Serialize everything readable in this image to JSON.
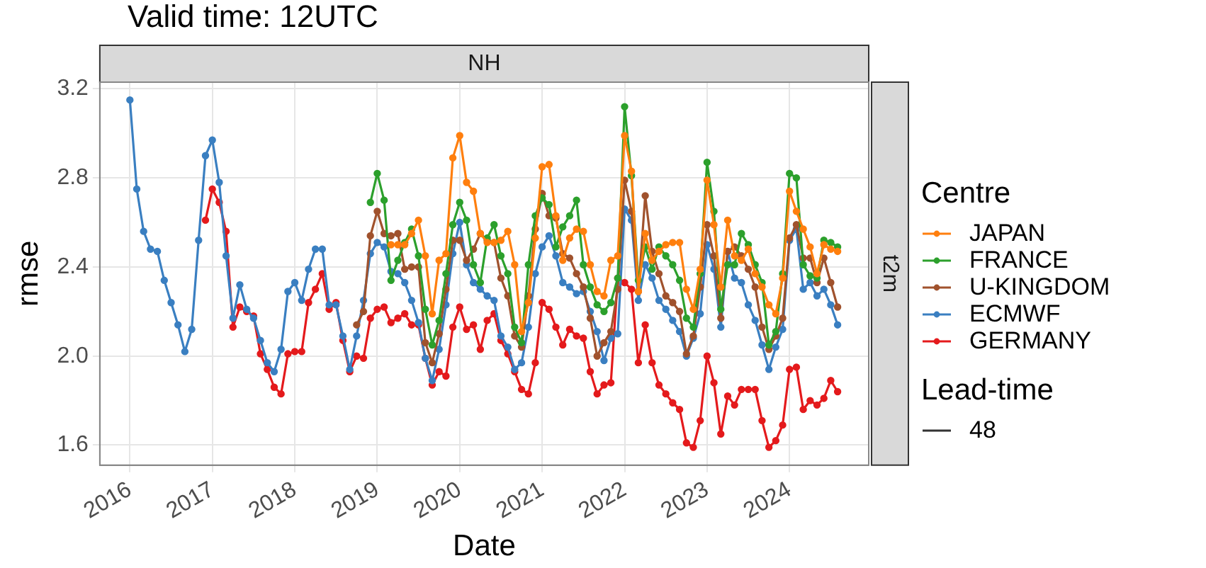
{
  "chart_data": {
    "type": "line",
    "title": "Valid time: 12UTC",
    "xlabel": "Date",
    "ylabel": "rmse",
    "legend_title": "Centre",
    "legend": "right",
    "grid": true,
    "marker": "circle",
    "line_style": "solid",
    "annotations": [
      "NH",
      "t2m",
      "Lead-time",
      "48"
    ],
    "xlim": [
      "2015-08-20",
      "2024-12-17"
    ],
    "xticks": [
      {
        "value": "2016-01-01",
        "label": "2016"
      },
      {
        "value": "2017-01-01",
        "label": "2017"
      },
      {
        "value": "2018-01-01",
        "label": "2018"
      },
      {
        "value": "2019-01-01",
        "label": "2019"
      },
      {
        "value": "2020-01-01",
        "label": "2020"
      },
      {
        "value": "2021-01-01",
        "label": "2021"
      },
      {
        "value": "2022-01-01",
        "label": "2022"
      },
      {
        "value": "2023-01-01",
        "label": "2023"
      },
      {
        "value": "2024-01-01",
        "label": "2024"
      }
    ],
    "ylim": [
      1.51,
      3.23
    ],
    "yticks": [
      {
        "value": 1.6,
        "label": "1.6"
      },
      {
        "value": 2,
        "label": "2.0"
      },
      {
        "value": 2.4,
        "label": "2.4"
      },
      {
        "value": 2.8,
        "label": "2.8"
      },
      {
        "value": 3.2,
        "label": "3.2"
      }
    ],
    "x": [
      "2016-01",
      "2016-02",
      "2016-03",
      "2016-04",
      "2016-05",
      "2016-06",
      "2016-07",
      "2016-08",
      "2016-09",
      "2016-10",
      "2016-11",
      "2016-12",
      "2017-01",
      "2017-02",
      "2017-03",
      "2017-04",
      "2017-05",
      "2017-06",
      "2017-07",
      "2017-08",
      "2017-09",
      "2017-10",
      "2017-11",
      "2017-12",
      "2018-01",
      "2018-02",
      "2018-03",
      "2018-04",
      "2018-05",
      "2018-06",
      "2018-07",
      "2018-08",
      "2018-09",
      "2018-10",
      "2018-11",
      "2018-12",
      "2019-01",
      "2019-02",
      "2019-03",
      "2019-04",
      "2019-05",
      "2019-06",
      "2019-07",
      "2019-08",
      "2019-09",
      "2019-10",
      "2019-11",
      "2019-12",
      "2020-01",
      "2020-02",
      "2020-03",
      "2020-04",
      "2020-05",
      "2020-06",
      "2020-07",
      "2020-08",
      "2020-09",
      "2020-10",
      "2020-11",
      "2020-12",
      "2021-01",
      "2021-02",
      "2021-03",
      "2021-04",
      "2021-05",
      "2021-06",
      "2021-07",
      "2021-08",
      "2021-09",
      "2021-10",
      "2021-11",
      "2021-12",
      "2022-01",
      "2022-02",
      "2022-03",
      "2022-04",
      "2022-05",
      "2022-06",
      "2022-07",
      "2022-08",
      "2022-09",
      "2022-10",
      "2022-11",
      "2022-12",
      "2023-01",
      "2023-02",
      "2023-03",
      "2023-04",
      "2023-05",
      "2023-06",
      "2023-07",
      "2023-08",
      "2023-09",
      "2023-10",
      "2023-11",
      "2023-12",
      "2024-01",
      "2024-02",
      "2024-03",
      "2024-04",
      "2024-05",
      "2024-06",
      "2024-07",
      "2024-08"
    ],
    "series": [
      {
        "name": "JAPAN",
        "color": "#ff7f0e",
        "values": [
          null,
          null,
          null,
          null,
          null,
          null,
          null,
          null,
          null,
          null,
          null,
          null,
          null,
          null,
          null,
          null,
          null,
          null,
          null,
          null,
          null,
          null,
          null,
          null,
          null,
          null,
          null,
          null,
          null,
          null,
          null,
          null,
          null,
          null,
          null,
          null,
          null,
          null,
          2.5,
          2.5,
          2.5,
          2.55,
          2.61,
          2.45,
          2.19,
          2.43,
          2.46,
          2.89,
          2.99,
          2.78,
          2.74,
          2.55,
          2.51,
          2.51,
          2.52,
          2.56,
          2.41,
          2.11,
          2.24,
          2.53,
          2.85,
          2.86,
          2.63,
          2.43,
          2.53,
          2.57,
          2.56,
          2.41,
          2.29,
          2.27,
          2.43,
          2.45,
          2.99,
          2.83,
          2.29,
          2.55,
          2.43,
          2.47,
          2.5,
          2.51,
          2.51,
          2.3,
          2.21,
          2.39,
          2.79,
          2.59,
          2.31,
          2.61,
          2.45,
          2.43,
          2.48,
          2.37,
          2.31,
          2.23,
          2.19,
          2.35,
          2.74,
          2.65,
          2.57,
          2.49,
          2.37,
          2.5,
          2.48,
          2.47
        ]
      },
      {
        "name": "FRANCE",
        "color": "#2ca02c",
        "values": [
          null,
          null,
          null,
          null,
          null,
          null,
          null,
          null,
          null,
          null,
          null,
          null,
          null,
          null,
          null,
          null,
          null,
          null,
          null,
          null,
          null,
          null,
          null,
          null,
          null,
          null,
          null,
          null,
          null,
          null,
          null,
          null,
          null,
          null,
          null,
          2.69,
          2.82,
          2.7,
          2.34,
          2.43,
          2.51,
          2.57,
          2.45,
          2.21,
          2.05,
          2.16,
          2.37,
          2.59,
          2.69,
          2.61,
          2.41,
          2.33,
          2.53,
          2.59,
          2.45,
          2.37,
          2.13,
          2.06,
          2.41,
          2.63,
          2.71,
          2.68,
          2.49,
          2.58,
          2.63,
          2.7,
          2.41,
          2.31,
          2.23,
          2.2,
          2.24,
          2.35,
          3.12,
          2.81,
          2.34,
          2.49,
          2.39,
          2.49,
          2.45,
          2.41,
          2.34,
          2.17,
          2.13,
          2.37,
          2.87,
          2.65,
          2.21,
          2.41,
          2.41,
          2.55,
          2.5,
          2.41,
          2.33,
          2.05,
          2.11,
          2.37,
          2.82,
          2.8,
          2.41,
          2.36,
          2.35,
          2.52,
          2.51,
          2.49
        ]
      },
      {
        "name": "U-KINGDOM",
        "color": "#a0522d",
        "values": [
          null,
          null,
          null,
          null,
          null,
          null,
          null,
          null,
          null,
          null,
          null,
          null,
          null,
          null,
          null,
          null,
          null,
          null,
          null,
          null,
          null,
          null,
          null,
          null,
          null,
          null,
          null,
          null,
          null,
          null,
          null,
          null,
          null,
          2.14,
          2.2,
          2.54,
          2.65,
          2.55,
          2.54,
          2.55,
          2.39,
          2.4,
          2.4,
          2.06,
          1.97,
          2.1,
          2.3,
          2.52,
          2.52,
          2.43,
          2.48,
          2.55,
          2.52,
          2.51,
          2.35,
          2.27,
          2.09,
          2.04,
          2.27,
          2.57,
          2.73,
          2.63,
          2.62,
          2.46,
          2.44,
          2.37,
          2.31,
          2.17,
          2.0,
          2.06,
          2.11,
          2.3,
          2.79,
          2.65,
          2.29,
          2.72,
          2.47,
          2.37,
          2.27,
          2.24,
          2.2,
          2.01,
          2.09,
          2.31,
          2.59,
          2.45,
          2.17,
          2.47,
          2.49,
          2.45,
          2.39,
          2.31,
          2.13,
          2.03,
          2.09,
          2.17,
          2.53,
          2.59,
          2.44,
          2.44,
          2.33,
          2.44,
          2.33,
          2.22
        ]
      },
      {
        "name": "ECMWF",
        "color": "#3a7fc1",
        "values": [
          3.15,
          2.75,
          2.56,
          2.48,
          2.47,
          2.34,
          2.24,
          2.14,
          2.02,
          2.12,
          2.52,
          2.9,
          2.97,
          2.78,
          2.45,
          2.17,
          2.32,
          2.21,
          2.17,
          2.07,
          1.97,
          1.93,
          2.03,
          2.29,
          2.33,
          2.25,
          2.39,
          2.48,
          2.48,
          2.23,
          2.23,
          2.09,
          1.94,
          2.09,
          2.25,
          2.46,
          2.51,
          2.49,
          2.38,
          2.37,
          2.33,
          2.25,
          2.15,
          1.99,
          1.89,
          2.03,
          2.23,
          2.46,
          2.6,
          2.41,
          2.33,
          2.3,
          2.27,
          2.25,
          2.09,
          2.04,
          1.94,
          1.97,
          2.13,
          2.37,
          2.49,
          2.54,
          2.45,
          2.33,
          2.31,
          2.28,
          2.29,
          2.2,
          2.11,
          1.98,
          2.08,
          2.1,
          2.66,
          2.61,
          2.25,
          2.41,
          2.35,
          2.25,
          2.21,
          2.16,
          2.11,
          2.0,
          2.08,
          2.19,
          2.5,
          2.39,
          2.13,
          2.47,
          2.35,
          2.33,
          2.23,
          2.16,
          2.05,
          1.94,
          2.04,
          2.12,
          2.52,
          2.57,
          2.3,
          2.33,
          2.27,
          2.3,
          2.23,
          2.14
        ]
      },
      {
        "name": "GERMANY",
        "color": "#e41a1c",
        "values": [
          null,
          null,
          null,
          null,
          null,
          null,
          null,
          null,
          null,
          null,
          null,
          2.61,
          2.75,
          2.69,
          2.56,
          2.13,
          2.22,
          2.2,
          2.18,
          2.01,
          1.94,
          1.86,
          1.83,
          2.01,
          2.02,
          2.02,
          2.24,
          2.3,
          2.37,
          2.21,
          2.24,
          2.07,
          1.93,
          2.0,
          1.99,
          2.17,
          2.21,
          2.22,
          2.15,
          2.17,
          2.19,
          2.14,
          2.14,
          1.99,
          1.87,
          1.93,
          1.91,
          2.13,
          2.22,
          2.12,
          2.14,
          2.03,
          2.16,
          2.19,
          2.07,
          2.01,
          1.93,
          1.85,
          1.83,
          1.97,
          2.24,
          2.21,
          2.13,
          2.05,
          2.12,
          2.09,
          2.08,
          1.93,
          1.83,
          1.87,
          1.88,
          2.35,
          2.33,
          2.3,
          1.97,
          2.14,
          1.97,
          1.87,
          1.83,
          1.79,
          1.76,
          1.61,
          1.59,
          1.71,
          2.0,
          1.88,
          1.65,
          1.82,
          1.78,
          1.85,
          1.85,
          1.85,
          1.71,
          1.59,
          1.62,
          1.69,
          1.94,
          1.95,
          1.76,
          1.8,
          1.78,
          1.81,
          1.89,
          1.84
        ]
      }
    ]
  }
}
